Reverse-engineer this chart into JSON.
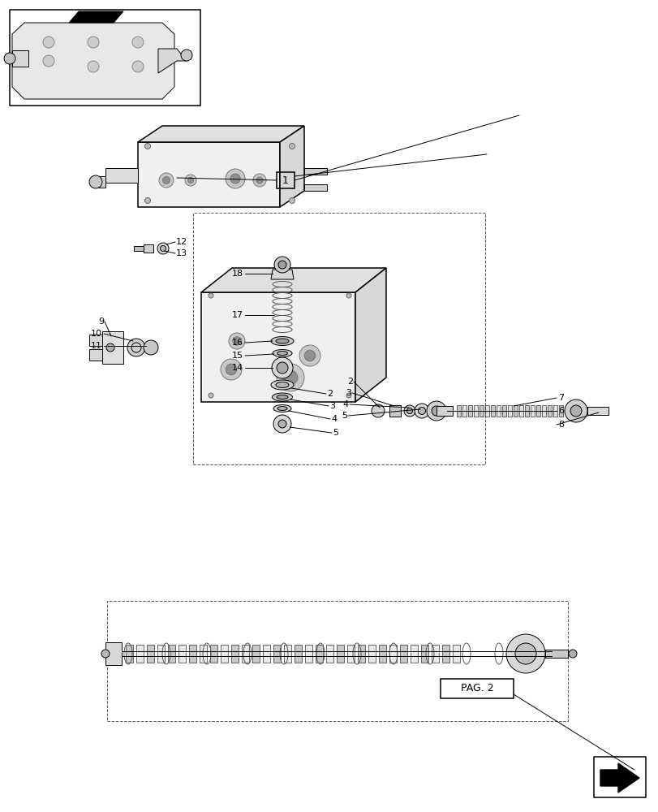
{
  "bg_color": "#ffffff",
  "lc": "#000000",
  "pag2_text": "PAG. 2",
  "figsize": [
    8.12,
    10.0
  ],
  "dpi": 100
}
